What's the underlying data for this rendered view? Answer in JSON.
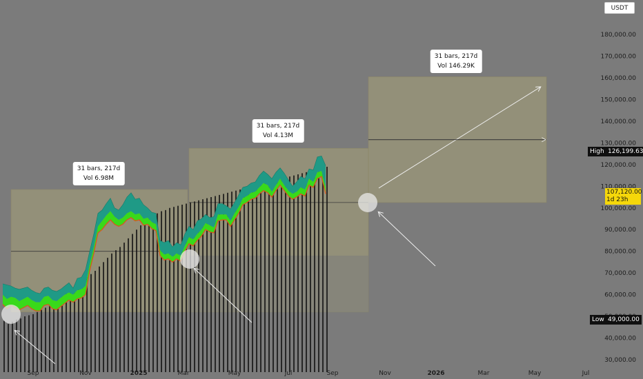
{
  "currency": "USDT",
  "colors": {
    "background": "#7b7b7b",
    "band_top": "#1f9a86",
    "band_mid": "#39d91a",
    "band_line": "#e0501a",
    "range_fill": "#a39e78",
    "current_price_bg": "#f5d70a"
  },
  "price_axis": {
    "ticks": [
      "180,000.00",
      "170,000.00",
      "160,000.00",
      "150,000.00",
      "140,000.00",
      "130,000.00",
      "120,000.00",
      "110,000.00",
      "100,000.00",
      "90,000.00",
      "80,000.00",
      "70,000.00",
      "60,000.00",
      "50,000.00",
      "40,000.00",
      "30,000.00"
    ],
    "high_label": "High",
    "high_value": "126,199.63",
    "low_label": "Low",
    "low_value": "49,000.00",
    "current_price": "107,120.00",
    "countdown": "1d 23h"
  },
  "time_axis": [
    {
      "label": "Sep",
      "bold": false
    },
    {
      "label": "Nov",
      "bold": false
    },
    {
      "label": "2025",
      "bold": true
    },
    {
      "label": "Mar",
      "bold": false
    },
    {
      "label": "May",
      "bold": false
    },
    {
      "label": "Jul",
      "bold": false
    },
    {
      "label": "Sep",
      "bold": false
    },
    {
      "label": "Nov",
      "bold": false
    },
    {
      "label": "2026",
      "bold": true
    },
    {
      "label": "Mar",
      "bold": false
    },
    {
      "label": "May",
      "bold": false
    },
    {
      "label": "Jul",
      "bold": false
    }
  ],
  "measurements": [
    {
      "line1": "31 bars, 217d",
      "line2": "Vol 6.98M"
    },
    {
      "line1": "31 bars, 217d",
      "line2": "Vol 4.13M"
    },
    {
      "line1": "31 bars, 217d",
      "line2": "Vol 146.29K"
    }
  ],
  "chart_data": {
    "type": "area",
    "y_range": [
      27000,
      190000
    ],
    "y_scale": "linear",
    "x_unit": "weekly bars",
    "bars_count": 90,
    "series": [
      {
        "values": [
          65000,
          64500,
          64000,
          63000,
          62500,
          63000,
          63500,
          62000,
          61000,
          60500,
          63000,
          63500,
          62000,
          61500,
          62500,
          64000,
          65500,
          63000,
          67500,
          68000,
          71500,
          80000,
          88000,
          97500,
          99000,
          102000,
          104500,
          100000,
          99000,
          101500,
          105000,
          107000,
          104000,
          104500,
          101500,
          100000,
          98000,
          97500,
          85000,
          84000,
          85000,
          82000,
          84000,
          83000,
          88000,
          91500,
          90000,
          94000,
          95000,
          97000,
          95500,
          96000,
          102000,
          102000,
          101000,
          99500,
          102500,
          106000,
          109500,
          110000,
          111500,
          112000,
          115000,
          117000,
          115500,
          113500,
          116500,
          118500,
          116000,
          113000,
          110000,
          112000,
          114500,
          113500,
          118000,
          117500,
          123500,
          124000,
          119500
        ]
      },
      {
        "values": [
          60000,
          58000,
          59000,
          58500,
          57000,
          58000,
          59000,
          57500,
          56500,
          56500,
          59000,
          59500,
          57500,
          57000,
          58500,
          60000,
          61000,
          60000,
          62000,
          62500,
          64000,
          74000,
          82000,
          91500,
          94000,
          96500,
          98500,
          96000,
          94500,
          95500,
          97500,
          98500,
          97000,
          97500,
          95000,
          95500,
          93500,
          92500,
          80500,
          78500,
          79000,
          77500,
          79000,
          78000,
          82500,
          86500,
          85500,
          88000,
          90000,
          93000,
          92000,
          91000,
          97000,
          97000,
          97000,
          94000,
          97500,
          100500,
          104500,
          105500,
          107000,
          107500,
          109500,
          111500,
          110500,
          107500,
          110500,
          113500,
          110500,
          108000,
          106500,
          107500,
          109500,
          108500,
          113500,
          112000,
          116500,
          117000,
          109500
        ]
      },
      {
        "values": [
          55500,
          53500,
          55000,
          54000,
          53000,
          54000,
          55000,
          53500,
          52500,
          52500,
          55000,
          55500,
          53500,
          53000,
          54500,
          56000,
          57500,
          56500,
          58000,
          58500,
          60000,
          71000,
          79000,
          88500,
          90000,
          92500,
          94500,
          92500,
          91500,
          92500,
          94500,
          95500,
          94000,
          94500,
          92000,
          92500,
          90500,
          89500,
          78000,
          76000,
          76500,
          75000,
          76500,
          75500,
          80000,
          83500,
          82500,
          85000,
          87000,
          90000,
          89000,
          88500,
          94000,
          94500,
          94500,
          91500,
          94500,
          97500,
          101500,
          102500,
          104000,
          104500,
          106500,
          108000,
          107000,
          105000,
          108000,
          110500,
          108000,
          105500,
          104000,
          105000,
          106500,
          105500,
          110500,
          109500,
          113500,
          114500,
          106500
        ]
      },
      {
        "values": [
          48000,
          46500,
          47500,
          48500,
          49000,
          50000,
          50500,
          51000,
          52000,
          53000,
          54000,
          55000,
          56000,
          57500,
          59000,
          60500,
          62000,
          63500,
          65000,
          66500,
          68000,
          69500,
          71000,
          73000,
          75000,
          77000,
          79000,
          80500,
          82000,
          84000,
          86000,
          88000,
          90000,
          92000,
          94000,
          95000,
          96500,
          97500,
          98500,
          99000,
          100000,
          100500,
          101000,
          101500,
          102000,
          102500,
          103000,
          103500,
          104000,
          104500,
          105000,
          105500,
          106000,
          106500,
          107000,
          107500,
          108000,
          108500,
          109000,
          109500,
          110000,
          110500,
          111000,
          111500,
          112000,
          112500,
          113000,
          113500,
          114000,
          114500,
          115000,
          115500,
          116000,
          116500,
          117000,
          117500,
          118000,
          118500,
          119000
        ]
      }
    ],
    "ranges": [
      {
        "price_low": 52000,
        "price_high": 108500,
        "price_mid": 80000
      },
      {
        "price_low": 52000,
        "price_high": 127500,
        "price_mid": 102500,
        "shade_low": 78000
      },
      {
        "price_low": 102500,
        "price_high": 160500,
        "price_mid": 131500
      }
    ],
    "projection": {
      "from": 106000,
      "to": 157000
    }
  }
}
